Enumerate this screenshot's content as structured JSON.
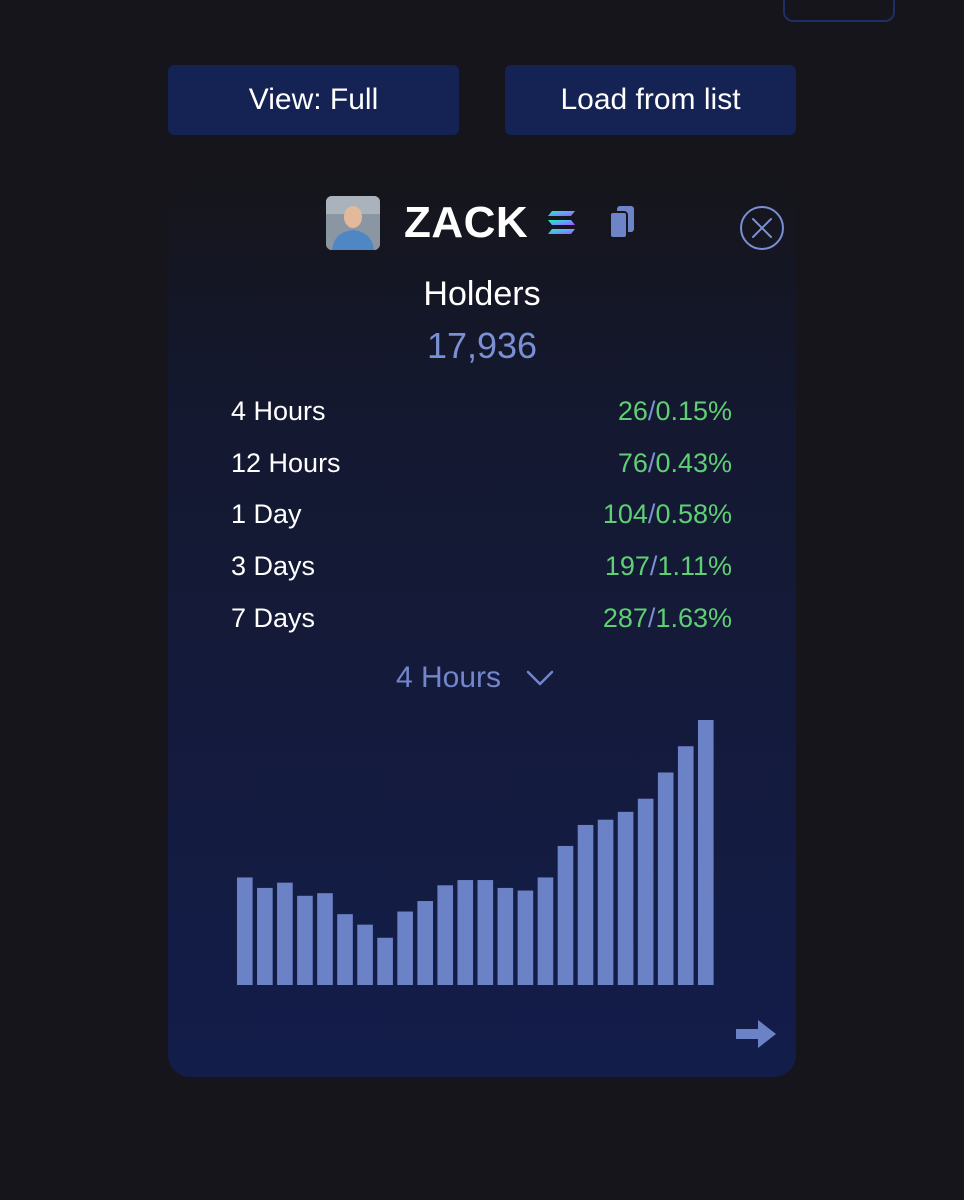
{
  "toolbar": {
    "view_label": "View: Full",
    "load_label": "Load from list"
  },
  "token": {
    "name": "ZACK",
    "chain_icon": "solana-icon",
    "copy_icon": "copy-icon",
    "close_icon": "close-circle-icon"
  },
  "holders": {
    "label": "Holders",
    "value": "17,936"
  },
  "stats": [
    {
      "label": "4 Hours",
      "count": "26",
      "percent": "0.15%"
    },
    {
      "label": "12 Hours",
      "count": "76",
      "percent": "0.43%"
    },
    {
      "label": "1 Day",
      "count": "104",
      "percent": "0.58%"
    },
    {
      "label": "3 Days",
      "count": "197",
      "percent": "1.11%"
    },
    {
      "label": "7 Days",
      "count": "287",
      "percent": "1.63%"
    }
  ],
  "period_selector": {
    "selected": "4 Hours",
    "icon": "chevron-down-icon"
  },
  "colors": {
    "positive": "#5fcf73",
    "accent": "#7b8fd4",
    "bar": "#6b82c6",
    "button_bg": "#142254"
  },
  "chart_data": {
    "type": "bar",
    "values": [
      41,
      37,
      39,
      34,
      35,
      27,
      23,
      18,
      28,
      32,
      38,
      40,
      40,
      37,
      36,
      41,
      53,
      61,
      63,
      66,
      71,
      81,
      91,
      101
    ],
    "ylim": [
      0,
      101
    ],
    "grid": false,
    "legend": "none"
  },
  "navigation": {
    "next_icon": "arrow-right-icon"
  }
}
